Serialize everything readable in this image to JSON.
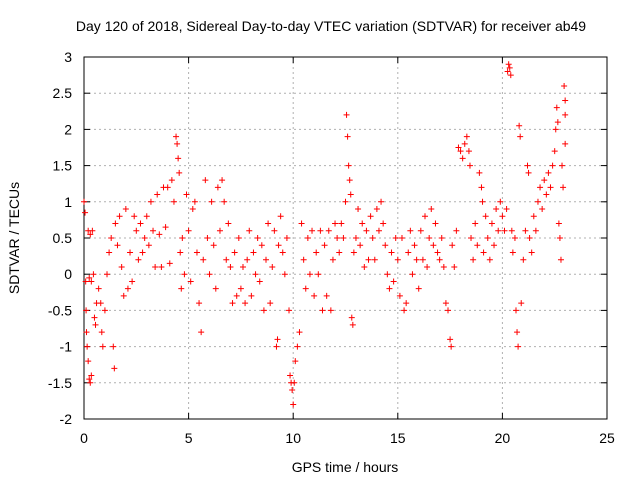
{
  "chart_data": {
    "type": "scatter",
    "title": "Day 120 of 2018, Sidereal Day-to-day VTEC variation (SDTVAR) for receiver ab49",
    "xlabel": "GPS time / hours",
    "ylabel": "SDTVAR / TECUs",
    "xlim": [
      0,
      25
    ],
    "ylim": [
      -2,
      3
    ],
    "xticks": [
      "0",
      "5",
      "10",
      "15",
      "20",
      "25"
    ],
    "yticks": [
      "-2",
      "-1.5",
      "-1",
      "-0.5",
      "0",
      "0.5",
      "1",
      "1.5",
      "2",
      "2.5",
      "3"
    ],
    "xtick_values": [
      0,
      5,
      10,
      15,
      20,
      25
    ],
    "ytick_values": [
      -2,
      -1.5,
      -1,
      -0.5,
      0,
      0.5,
      1,
      1.5,
      2,
      2.5,
      3
    ],
    "grid": true,
    "marker": "+",
    "color": "#ff0000",
    "series": [
      {
        "name": "SDTVAR",
        "points": [
          [
            0.0,
            1.0
          ],
          [
            0.05,
            0.85
          ],
          [
            0.08,
            -0.1
          ],
          [
            0.1,
            -0.5
          ],
          [
            0.12,
            -0.8
          ],
          [
            0.15,
            -1.0
          ],
          [
            0.2,
            -1.2
          ],
          [
            0.25,
            -1.45
          ],
          [
            0.3,
            -1.5
          ],
          [
            0.35,
            -1.4
          ],
          [
            0.2,
            0.6
          ],
          [
            0.3,
            0.55
          ],
          [
            0.4,
            0.6
          ],
          [
            0.25,
            -0.05
          ],
          [
            0.35,
            -0.1
          ],
          [
            0.45,
            0.0
          ],
          [
            0.5,
            -0.6
          ],
          [
            0.55,
            -0.7
          ],
          [
            0.6,
            -0.4
          ],
          [
            0.7,
            -0.2
          ],
          [
            0.8,
            -0.4
          ],
          [
            0.85,
            -0.8
          ],
          [
            0.9,
            -1.0
          ],
          [
            1.0,
            -0.5
          ],
          [
            1.1,
            0.0
          ],
          [
            1.2,
            0.3
          ],
          [
            1.3,
            0.5
          ],
          [
            1.4,
            -1.0
          ],
          [
            1.45,
            -1.3
          ],
          [
            1.5,
            0.7
          ],
          [
            1.6,
            0.4
          ],
          [
            1.7,
            0.8
          ],
          [
            1.8,
            0.1
          ],
          [
            1.9,
            -0.3
          ],
          [
            2.0,
            0.9
          ],
          [
            2.1,
            -0.2
          ],
          [
            2.2,
            0.3
          ],
          [
            2.3,
            -0.1
          ],
          [
            2.4,
            0.8
          ],
          [
            2.5,
            0.6
          ],
          [
            2.6,
            0.2
          ],
          [
            2.7,
            0.7
          ],
          [
            2.8,
            0.3
          ],
          [
            2.9,
            0.5
          ],
          [
            3.0,
            0.8
          ],
          [
            3.1,
            0.4
          ],
          [
            3.2,
            1.0
          ],
          [
            3.3,
            0.6
          ],
          [
            3.4,
            0.1
          ],
          [
            3.5,
            1.1
          ],
          [
            3.6,
            0.55
          ],
          [
            3.7,
            0.1
          ],
          [
            3.8,
            1.2
          ],
          [
            3.9,
            0.65
          ],
          [
            4.0,
            1.2
          ],
          [
            4.1,
            0.15
          ],
          [
            4.2,
            1.3
          ],
          [
            4.3,
            1.0
          ],
          [
            4.4,
            1.9
          ],
          [
            4.45,
            1.8
          ],
          [
            4.5,
            1.6
          ],
          [
            4.55,
            1.4
          ],
          [
            4.6,
            0.3
          ],
          [
            4.65,
            -0.2
          ],
          [
            4.7,
            0.5
          ],
          [
            4.8,
            0.0
          ],
          [
            4.9,
            1.1
          ],
          [
            5.0,
            0.6
          ],
          [
            5.1,
            -0.1
          ],
          [
            5.2,
            0.9
          ],
          [
            5.3,
            1.0
          ],
          [
            5.4,
            0.3
          ],
          [
            5.5,
            -0.4
          ],
          [
            5.6,
            -0.8
          ],
          [
            5.7,
            0.2
          ],
          [
            5.8,
            1.3
          ],
          [
            5.9,
            0.5
          ],
          [
            6.0,
            0.0
          ],
          [
            6.1,
            1.0
          ],
          [
            6.2,
            0.4
          ],
          [
            6.3,
            -0.2
          ],
          [
            6.4,
            1.2
          ],
          [
            6.5,
            0.6
          ],
          [
            6.6,
            1.3
          ],
          [
            6.7,
            1.0
          ],
          [
            6.8,
            0.2
          ],
          [
            6.9,
            0.7
          ],
          [
            7.0,
            0.1
          ],
          [
            7.1,
            -0.4
          ],
          [
            7.2,
            0.3
          ],
          [
            7.3,
            -0.3
          ],
          [
            7.4,
            0.5
          ],
          [
            7.5,
            -0.2
          ],
          [
            7.6,
            0.1
          ],
          [
            7.7,
            -0.4
          ],
          [
            7.8,
            0.2
          ],
          [
            7.9,
            0.6
          ],
          [
            8.0,
            -0.3
          ],
          [
            8.1,
            0.3
          ],
          [
            8.2,
            0.0
          ],
          [
            8.3,
            0.5
          ],
          [
            8.4,
            -0.1
          ],
          [
            8.5,
            0.4
          ],
          [
            8.6,
            -0.5
          ],
          [
            8.7,
            0.2
          ],
          [
            8.8,
            0.7
          ],
          [
            8.9,
            -0.4
          ],
          [
            9.0,
            0.1
          ],
          [
            9.1,
            0.6
          ],
          [
            9.2,
            -1.0
          ],
          [
            9.25,
            -0.9
          ],
          [
            9.3,
            0.4
          ],
          [
            9.4,
            0.8
          ],
          [
            9.5,
            0.3
          ],
          [
            9.6,
            0.0
          ],
          [
            9.7,
            0.5
          ],
          [
            9.8,
            -0.5
          ],
          [
            9.85,
            -1.4
          ],
          [
            9.9,
            -1.5
          ],
          [
            9.95,
            -1.6
          ],
          [
            10.0,
            -1.8
          ],
          [
            10.05,
            -1.5
          ],
          [
            10.1,
            -1.2
          ],
          [
            10.2,
            -1.0
          ],
          [
            10.3,
            -0.8
          ],
          [
            10.4,
            0.7
          ],
          [
            10.5,
            0.2
          ],
          [
            10.6,
            -0.2
          ],
          [
            10.7,
            0.5
          ],
          [
            10.8,
            0.0
          ],
          [
            10.9,
            0.6
          ],
          [
            11.0,
            -0.3
          ],
          [
            11.1,
            0.3
          ],
          [
            11.2,
            0.0
          ],
          [
            11.3,
            0.6
          ],
          [
            11.4,
            -0.5
          ],
          [
            11.5,
            0.4
          ],
          [
            11.6,
            -0.3
          ],
          [
            11.7,
            0.6
          ],
          [
            11.8,
            -0.5
          ],
          [
            11.9,
            0.2
          ],
          [
            12.0,
            0.7
          ],
          [
            12.1,
            0.5
          ],
          [
            12.2,
            0.3
          ],
          [
            12.3,
            0.7
          ],
          [
            12.4,
            0.5
          ],
          [
            12.5,
            1.0
          ],
          [
            12.55,
            2.2
          ],
          [
            12.6,
            1.9
          ],
          [
            12.65,
            1.5
          ],
          [
            12.7,
            1.3
          ],
          [
            12.75,
            1.1
          ],
          [
            12.8,
            -0.6
          ],
          [
            12.85,
            -0.7
          ],
          [
            12.9,
            0.3
          ],
          [
            13.0,
            0.5
          ],
          [
            13.1,
            0.9
          ],
          [
            13.2,
            0.4
          ],
          [
            13.3,
            0.7
          ],
          [
            13.4,
            0.1
          ],
          [
            13.5,
            0.6
          ],
          [
            13.6,
            0.2
          ],
          [
            13.7,
            0.8
          ],
          [
            13.8,
            0.5
          ],
          [
            13.9,
            0.2
          ],
          [
            14.0,
            0.9
          ],
          [
            14.1,
            0.6
          ],
          [
            14.2,
            1.0
          ],
          [
            14.3,
            0.7
          ],
          [
            14.4,
            0.4
          ],
          [
            14.5,
            0.0
          ],
          [
            14.6,
            -0.2
          ],
          [
            14.7,
            0.3
          ],
          [
            14.8,
            -0.1
          ],
          [
            14.9,
            0.5
          ],
          [
            15.0,
            0.2
          ],
          [
            15.1,
            -0.3
          ],
          [
            15.2,
            0.5
          ],
          [
            15.3,
            -0.5
          ],
          [
            15.4,
            -0.4
          ],
          [
            15.5,
            0.3
          ],
          [
            15.6,
            0.6
          ],
          [
            15.7,
            0.0
          ],
          [
            15.8,
            0.4
          ],
          [
            15.9,
            0.2
          ],
          [
            16.0,
            -0.2
          ],
          [
            16.1,
            0.6
          ],
          [
            16.2,
            0.2
          ],
          [
            16.3,
            0.8
          ],
          [
            16.4,
            0.1
          ],
          [
            16.5,
            0.5
          ],
          [
            16.6,
            0.9
          ],
          [
            16.7,
            0.4
          ],
          [
            16.8,
            0.7
          ],
          [
            16.9,
            0.3
          ],
          [
            17.0,
            0.2
          ],
          [
            17.1,
            0.5
          ],
          [
            17.2,
            0.1
          ],
          [
            17.3,
            -0.4
          ],
          [
            17.4,
            -0.5
          ],
          [
            17.5,
            -0.9
          ],
          [
            17.55,
            -1.0
          ],
          [
            17.6,
            0.4
          ],
          [
            17.7,
            0.1
          ],
          [
            17.8,
            0.6
          ],
          [
            17.9,
            1.75
          ],
          [
            18.0,
            1.7
          ],
          [
            18.1,
            1.6
          ],
          [
            18.2,
            1.8
          ],
          [
            18.3,
            1.9
          ],
          [
            18.4,
            1.7
          ],
          [
            18.45,
            1.5
          ],
          [
            18.5,
            0.5
          ],
          [
            18.6,
            0.2
          ],
          [
            18.7,
            0.7
          ],
          [
            18.8,
            0.4
          ],
          [
            18.9,
            1.4
          ],
          [
            19.0,
            1.2
          ],
          [
            19.05,
            1.0
          ],
          [
            19.1,
            0.3
          ],
          [
            19.2,
            0.8
          ],
          [
            19.3,
            0.5
          ],
          [
            19.4,
            0.2
          ],
          [
            19.5,
            0.7
          ],
          [
            19.6,
            0.4
          ],
          [
            19.7,
            0.9
          ],
          [
            19.8,
            0.6
          ],
          [
            19.9,
            1.0
          ],
          [
            20.0,
            0.8
          ],
          [
            20.1,
            0.6
          ],
          [
            20.2,
            0.9
          ],
          [
            20.25,
            2.8
          ],
          [
            20.3,
            2.9
          ],
          [
            20.35,
            2.85
          ],
          [
            20.4,
            2.75
          ],
          [
            20.45,
            0.6
          ],
          [
            20.5,
            0.3
          ],
          [
            20.6,
            0.5
          ],
          [
            20.65,
            -0.5
          ],
          [
            20.7,
            -0.8
          ],
          [
            20.75,
            -1.0
          ],
          [
            20.8,
            2.05
          ],
          [
            20.85,
            1.9
          ],
          [
            20.9,
            -0.4
          ],
          [
            21.0,
            0.2
          ],
          [
            21.1,
            0.6
          ],
          [
            21.2,
            1.5
          ],
          [
            21.25,
            1.4
          ],
          [
            21.3,
            0.5
          ],
          [
            21.4,
            0.3
          ],
          [
            21.5,
            0.8
          ],
          [
            21.6,
            0.6
          ],
          [
            21.7,
            1.0
          ],
          [
            21.8,
            1.2
          ],
          [
            21.9,
            0.9
          ],
          [
            22.0,
            1.3
          ],
          [
            22.1,
            1.1
          ],
          [
            22.2,
            1.4
          ],
          [
            22.3,
            1.2
          ],
          [
            22.4,
            1.5
          ],
          [
            22.5,
            1.7
          ],
          [
            22.55,
            2.0
          ],
          [
            22.6,
            2.3
          ],
          [
            22.65,
            2.1
          ],
          [
            22.7,
            0.7
          ],
          [
            22.75,
            0.5
          ],
          [
            22.8,
            0.2
          ],
          [
            22.85,
            1.5
          ],
          [
            22.9,
            1.2
          ],
          [
            22.95,
            2.6
          ],
          [
            23.0,
            2.2
          ],
          [
            23.0,
            1.8
          ],
          [
            23.0,
            2.4
          ]
        ]
      }
    ]
  }
}
